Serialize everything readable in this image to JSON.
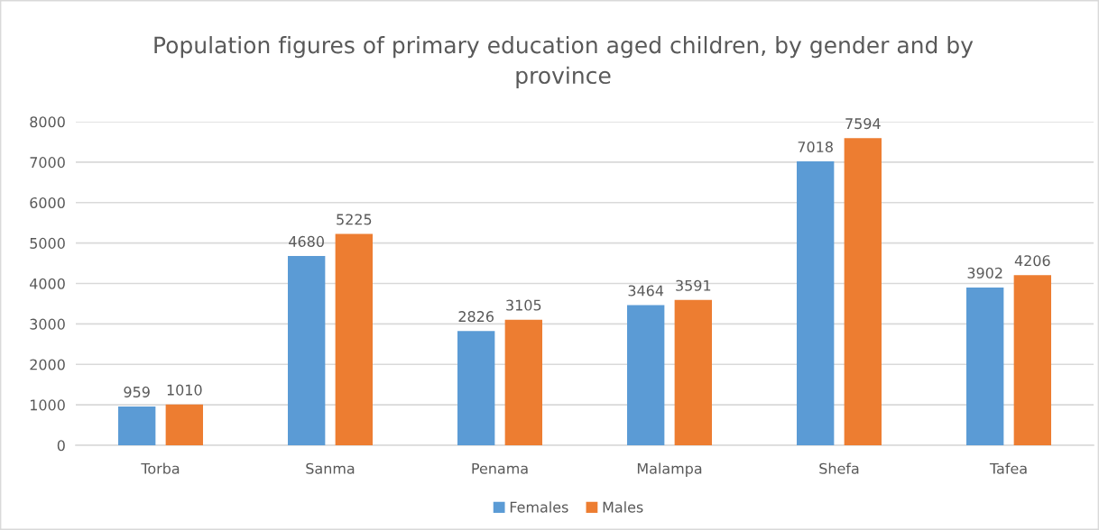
{
  "chart_data": {
    "type": "bar",
    "title": "Population figures of primary education aged children, by gender and by province",
    "categories": [
      "Torba",
      "Sanma",
      "Penama",
      "Malampa",
      "Shefa",
      "Tafea"
    ],
    "series": [
      {
        "name": "Females",
        "color": "#5b9bd5",
        "values": [
          959,
          4680,
          2826,
          3464,
          7018,
          3902
        ]
      },
      {
        "name": "Males",
        "color": "#ed7d31",
        "values": [
          1010,
          5225,
          3105,
          3591,
          7594,
          4206
        ]
      }
    ],
    "ylim": [
      0,
      8000
    ],
    "yticks": [
      0,
      1000,
      2000,
      3000,
      4000,
      5000,
      6000,
      7000,
      8000
    ],
    "grid": "y",
    "legend": "bottom",
    "data_labels": true
  }
}
